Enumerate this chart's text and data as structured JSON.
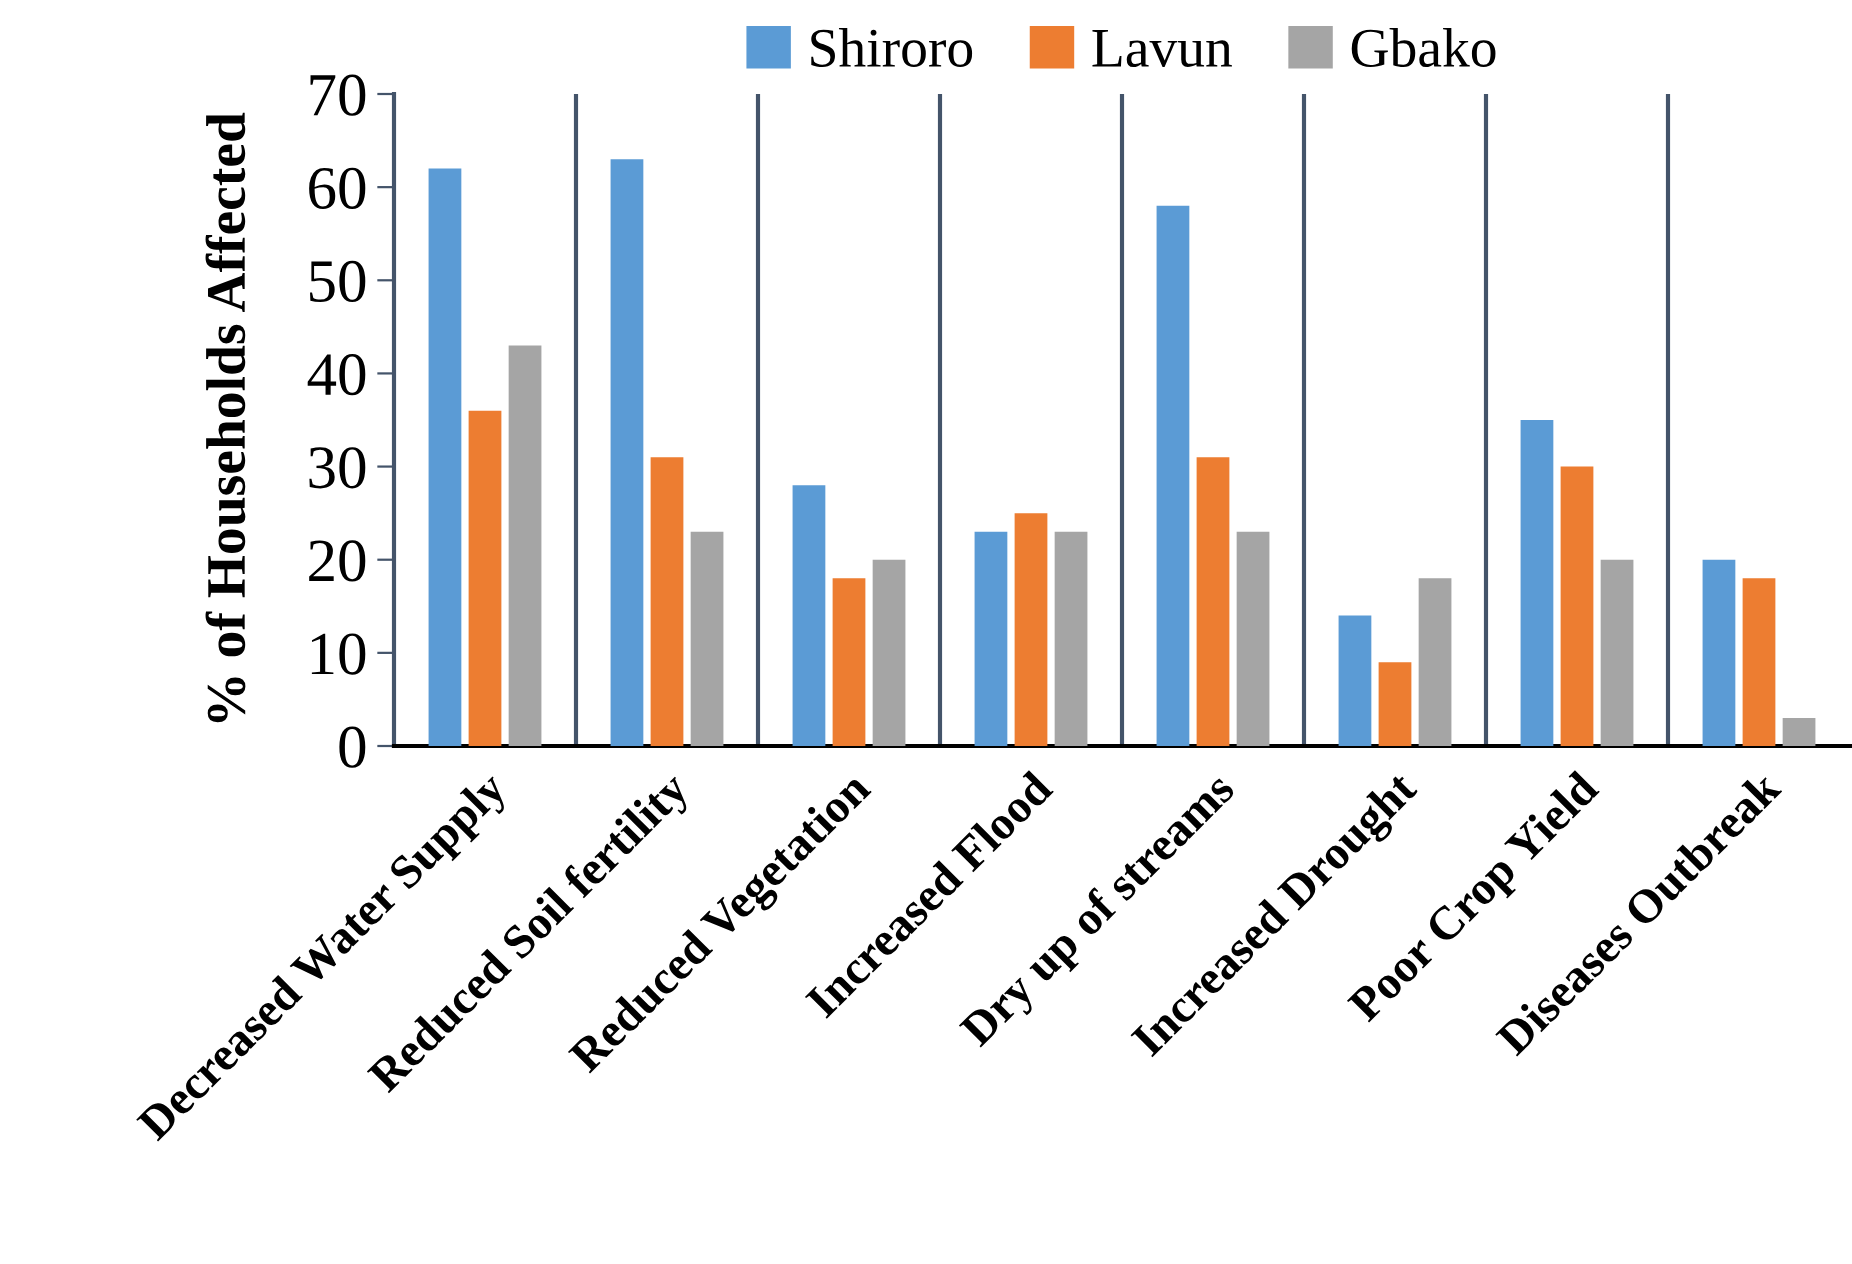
{
  "chart_data": {
    "type": "bar",
    "ylabel": "% of Households Affected",
    "categories": [
      "Decreased Water Supply",
      "Reduced Soil fertility",
      "Reduced Vegetation",
      "Increased Flood",
      "Dry up of streams",
      "Increased Drought",
      "Poor Crop Yield",
      "Diseases Outbreak"
    ],
    "series": [
      {
        "name": "Shiroro",
        "color": "#5b9bd5",
        "values": [
          62,
          63,
          28,
          23,
          58,
          14,
          35,
          20
        ]
      },
      {
        "name": "Lavun",
        "color": "#ed7d31",
        "values": [
          36,
          31,
          18,
          25,
          31,
          9,
          30,
          18
        ]
      },
      {
        "name": "Gbako",
        "color": "#a5a5a5",
        "values": [
          43,
          23,
          20,
          23,
          23,
          18,
          20,
          3
        ]
      }
    ],
    "ylim": [
      0,
      70
    ],
    "yticks": [
      0,
      10,
      20,
      30,
      40,
      50,
      60,
      70
    ],
    "grid": "x",
    "legend": "top"
  }
}
